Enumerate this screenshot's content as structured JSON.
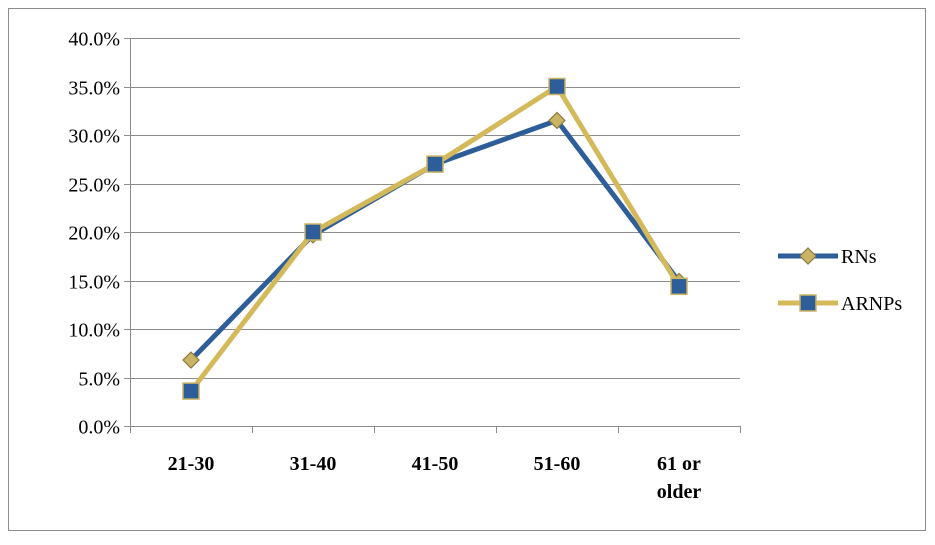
{
  "chart_data": {
    "type": "line",
    "categories": [
      "21-30",
      "31-40",
      "41-50",
      "51-60",
      "61 or older"
    ],
    "series": [
      {
        "name": "RNs",
        "values": [
          6.8,
          19.7,
          27.0,
          31.5,
          14.9
        ],
        "color": "#2e5e99",
        "marker": "diamond",
        "marker_fill": "#c8b464"
      },
      {
        "name": "ARNPs",
        "values": [
          3.6,
          20.0,
          27.0,
          35.0,
          14.4
        ],
        "color": "#d4b95b",
        "marker": "square",
        "marker_fill": "#2e5e99"
      }
    ],
    "ylim": [
      0,
      40
    ],
    "y_ticks": [
      "0.0%",
      "5.0%",
      "10.0%",
      "15.0%",
      "20.0%",
      "25.0%",
      "30.0%",
      "35.0%",
      "40.0%"
    ],
    "y_tick_values": [
      0,
      5,
      10,
      15,
      20,
      25,
      30,
      35,
      40
    ],
    "x_tick_labels": [
      [
        "21-30"
      ],
      [
        "31-40"
      ],
      [
        "41-50"
      ],
      [
        "51-60"
      ],
      [
        "61 or",
        "older"
      ]
    ],
    "grid": true,
    "legend": "right",
    "title": "",
    "xlabel": "",
    "ylabel": ""
  }
}
